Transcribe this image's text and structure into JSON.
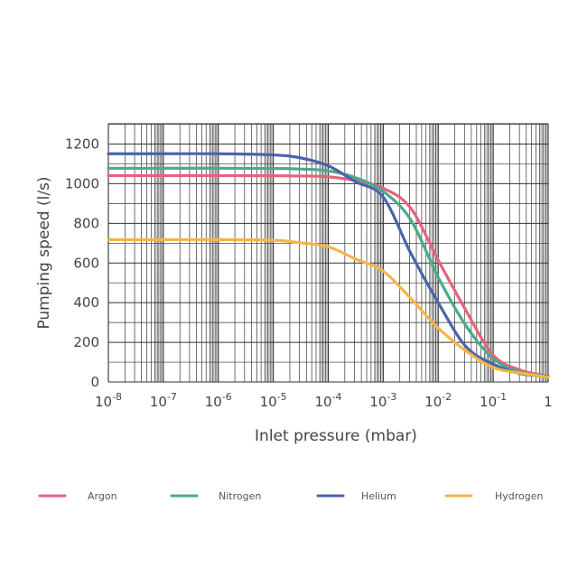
{
  "chart_data": {
    "type": "line",
    "xlabel": "Inlet pressure (mbar)",
    "ylabel": "Pumping speed (l/s)",
    "x_scale": "log",
    "xlim": [
      1e-08,
      1
    ],
    "ylim": [
      0,
      1300
    ],
    "grid": true,
    "legend_position": "bottom",
    "x_ticks": [
      {
        "base": "10",
        "exp": "-8",
        "value": 1e-08
      },
      {
        "base": "10",
        "exp": "-7",
        "value": 1e-07
      },
      {
        "base": "10",
        "exp": "-6",
        "value": 1e-06
      },
      {
        "base": "10",
        "exp": "-5",
        "value": 1e-05
      },
      {
        "base": "10",
        "exp": "-4",
        "value": 0.0001
      },
      {
        "base": "10",
        "exp": "-3",
        "value": 0.001
      },
      {
        "base": "10",
        "exp": "-2",
        "value": 0.01
      },
      {
        "base": "10",
        "exp": "-1",
        "value": 0.1
      },
      {
        "base": "1",
        "exp": "",
        "value": 1
      }
    ],
    "y_ticks": [
      "0",
      "200",
      "400",
      "600",
      "800",
      "1000",
      "1200"
    ],
    "x": [
      1e-08,
      1e-07,
      1e-06,
      1e-05,
      3.16e-05,
      0.0001,
      0.000316,
      0.001,
      0.00316,
      0.01,
      0.0316,
      0.1,
      0.316,
      1
    ],
    "series": [
      {
        "name": "Argon",
        "color": "#e8627c",
        "values": [
          1041,
          1041,
          1041,
          1040,
          1039,
          1035,
          1015,
          977,
          877,
          614,
          363,
          135,
          60,
          30
        ]
      },
      {
        "name": "Nitrogen",
        "color": "#4baa8a",
        "values": [
          1078,
          1078,
          1078,
          1077,
          1074,
          1065,
          1030,
          961,
          818,
          528,
          286,
          118,
          50,
          30
        ]
      },
      {
        "name": "Helium",
        "color": "#4b63b0",
        "values": [
          1151,
          1151,
          1151,
          1145,
          1130,
          1090,
          1010,
          932,
          650,
          400,
          180,
          90,
          42,
          28
        ]
      },
      {
        "name": "Hydrogen",
        "color": "#f5b545",
        "values": [
          718,
          718,
          718,
          715,
          702,
          682,
          620,
          559,
          422,
          272,
          158,
          73,
          45,
          25
        ]
      }
    ]
  }
}
